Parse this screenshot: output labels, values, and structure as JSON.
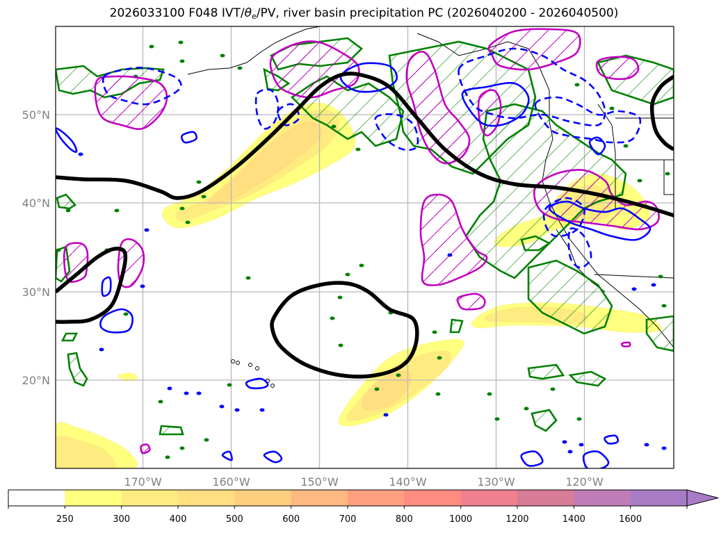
{
  "title": {
    "prefix": "2026033100 F048 IVT/",
    "theta": "θ",
    "theta_sub": "e",
    "suffix": "/PV, river basin precipitation PC (2026040200 - 2026040500)"
  },
  "chart_data": {
    "type": "map-contour",
    "title": "2026033100 F048 IVT/θe/PV, river basin precipitation PC (2026040200 - 2026040500)",
    "init_time": "2026033100",
    "forecast_hour": "F048",
    "valid_range": "2026040200 - 2026040500",
    "fields": [
      "IVT (filled)",
      "θe/PV (black contour)",
      "precipitation PC (green, blue solid/dashed, magenta hatched contours)"
    ],
    "extent": {
      "lon": [
        -180,
        -110
      ],
      "lat": [
        10,
        60
      ]
    },
    "x_ticks": [
      "170°W",
      "160°W",
      "150°W",
      "140°W",
      "130°W",
      "120°W"
    ],
    "x_tick_values": [
      -170,
      -160,
      -150,
      -140,
      -130,
      -120
    ],
    "y_ticks": [
      "50°N",
      "40°N",
      "30°N",
      "20°N"
    ],
    "y_tick_values": [
      50,
      40,
      30,
      20
    ],
    "grid": true,
    "colorbar": {
      "orientation": "horizontal",
      "placement": "bottom",
      "extend": "max",
      "levels": [
        250,
        300,
        400,
        500,
        600,
        700,
        800,
        1000,
        1200,
        1400,
        1600
      ],
      "labels": [
        "250",
        "300",
        "400",
        "500",
        "600",
        "700",
        "800",
        "1000",
        "1200",
        "1400",
        "1600"
      ],
      "colors": [
        "#ffffff",
        "#ffff80",
        "#ffec80",
        "#ffdf80",
        "#ffcf80",
        "#ffb880",
        "#ffa080",
        "#ff8c80",
        "#f08090",
        "#d87c98",
        "#c07cb8",
        "#a87cc4"
      ]
    },
    "ivt_features": [
      {
        "name": "north-pacific-plume",
        "lon_range": [
          -166,
          -146
        ],
        "lat_range": [
          38,
          52
        ],
        "max_level": 500
      },
      {
        "name": "subtropical-plume",
        "lon_range": [
          -146,
          -138
        ],
        "lat_range": [
          15,
          25
        ],
        "max_level": 500
      },
      {
        "name": "baja-band",
        "lon_range": [
          -132,
          -112
        ],
        "lat_range": [
          25,
          29
        ],
        "max_level": 400
      },
      {
        "name": "california-plume",
        "lon_range": [
          -128,
          -112
        ],
        "lat_range": [
          36,
          42
        ],
        "max_level": 400
      },
      {
        "name": "sw-corner",
        "lon_range": [
          -180,
          -172
        ],
        "lat_range": [
          10,
          15
        ],
        "max_level": 400
      }
    ]
  },
  "colors": {
    "ivt_contour": "#000000",
    "green_contour": "#008000",
    "blue_contour": "#0000ff",
    "magenta_contour": "#c000c0",
    "grid": "#b8b8b8",
    "coast": "#000000",
    "axis_label": "#808080"
  }
}
